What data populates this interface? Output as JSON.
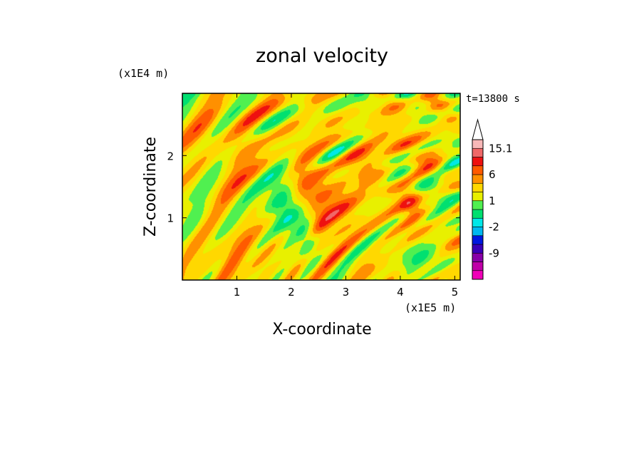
{
  "chart_data": {
    "type": "heatmap",
    "title": "zonal velocity",
    "xlabel": "X-coordinate",
    "ylabel": "Z-coordinate",
    "x_unit": "(x1E5 m)",
    "y_unit": "(x1E4 m)",
    "time_label": "t=13800 s",
    "xlim": [
      0,
      5.1
    ],
    "ylim": [
      0,
      3.0
    ],
    "x_ticks": [
      1,
      2,
      3,
      4,
      5
    ],
    "y_ticks": [
      1,
      2
    ],
    "colorbar": {
      "labels": [
        "15.1",
        "6",
        "1",
        "-2",
        "-9"
      ],
      "label_values": [
        15.1,
        6,
        1,
        -2,
        -9
      ],
      "levels": [
        -15,
        -12,
        -9,
        -6,
        -3,
        -2,
        -1,
        0,
        1,
        2,
        3,
        6,
        9,
        12,
        15.1
      ],
      "colors": [
        "#f000b8",
        "#c000a8",
        "#8800a8",
        "#3a00b8",
        "#0018e0",
        "#00b8f0",
        "#00e8e8",
        "#00e070",
        "#50f050",
        "#e8f000",
        "#ffd800",
        "#ff9000",
        "#ff5a00",
        "#ee1010",
        "#f06868",
        "#f8b8b8"
      ],
      "extend": "max"
    }
  }
}
